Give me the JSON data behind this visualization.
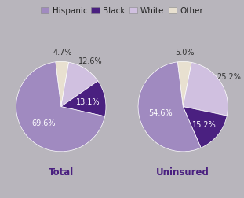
{
  "background_color": "#b8b5bc",
  "legend_labels": [
    "Hispanic",
    "Black",
    "White",
    "Other"
  ],
  "colors": {
    "Hispanic": "#a08ac0",
    "Black": "#4a2080",
    "White": "#d0c0e0",
    "Other": "#e8e0d0"
  },
  "total": {
    "order": [
      "Other",
      "White",
      "Black",
      "Hispanic"
    ],
    "values": [
      4.7,
      12.6,
      13.1,
      69.6
    ],
    "label": "Total"
  },
  "uninsured": {
    "order": [
      "Other",
      "White",
      "Black",
      "Hispanic"
    ],
    "values": [
      5.0,
      25.2,
      15.2,
      54.6
    ],
    "label": "Uninsured"
  },
  "label_positions": {
    "total": {
      "Other": "4.7%",
      "White": "12.6%",
      "Black": "13.1%",
      "Hispanic": "69.6%"
    },
    "uninsured": {
      "Other": "5.0%",
      "White": "25.2%",
      "Black": "15.2%",
      "Hispanic": "54.6%"
    }
  },
  "startangle": 97,
  "title_fontsize": 8.5,
  "label_fontsize": 7,
  "legend_fontsize": 7.5,
  "inside_label_color": "white",
  "outside_label_color": "#333333"
}
